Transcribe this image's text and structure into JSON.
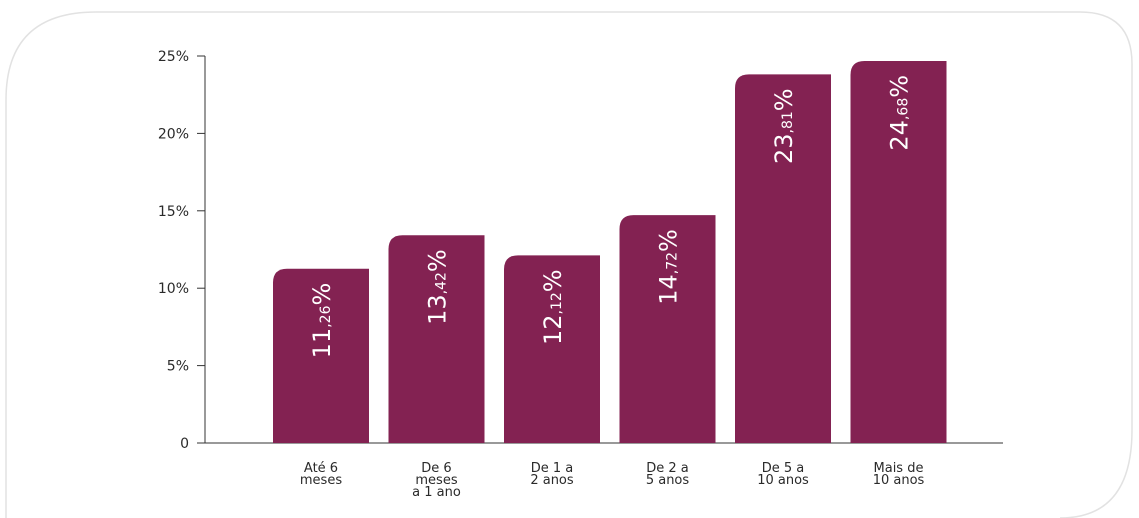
{
  "chart_data": {
    "type": "bar",
    "categories": [
      [
        "Até 6",
        "meses"
      ],
      [
        "De 6",
        "meses",
        "a 1 ano"
      ],
      [
        "De 1 a",
        "2 anos"
      ],
      [
        "De 2 a",
        "5 anos"
      ],
      [
        "De 5 a",
        "10 anos"
      ],
      [
        "Mais de",
        "10 anos"
      ]
    ],
    "values": [
      11.26,
      13.42,
      12.12,
      14.72,
      23.81,
      24.68
    ],
    "value_labels": [
      {
        "int": "11",
        "dec": ",26",
        "unit": "%"
      },
      {
        "int": "13",
        "dec": ",42",
        "unit": "%"
      },
      {
        "int": "12",
        "dec": ",12",
        "unit": "%"
      },
      {
        "int": "14",
        "dec": ",72",
        "unit": "%"
      },
      {
        "int": "23",
        "dec": ",81",
        "unit": "%"
      },
      {
        "int": "24",
        "dec": ",68",
        "unit": "%"
      }
    ],
    "yticks": [
      0,
      5,
      10,
      15,
      20,
      25
    ],
    "ytick_labels": [
      "0",
      "5%",
      "10%",
      "15%",
      "20%",
      "25%"
    ],
    "ylim": [
      0,
      25
    ],
    "xlabel": "",
    "ylabel": "",
    "grid": false,
    "colors": {
      "bar": "#832252",
      "axis": "#333333",
      "text": "#2a2a2a",
      "value_text": "#ffffff",
      "card_border": "#e2e2e2"
    }
  }
}
